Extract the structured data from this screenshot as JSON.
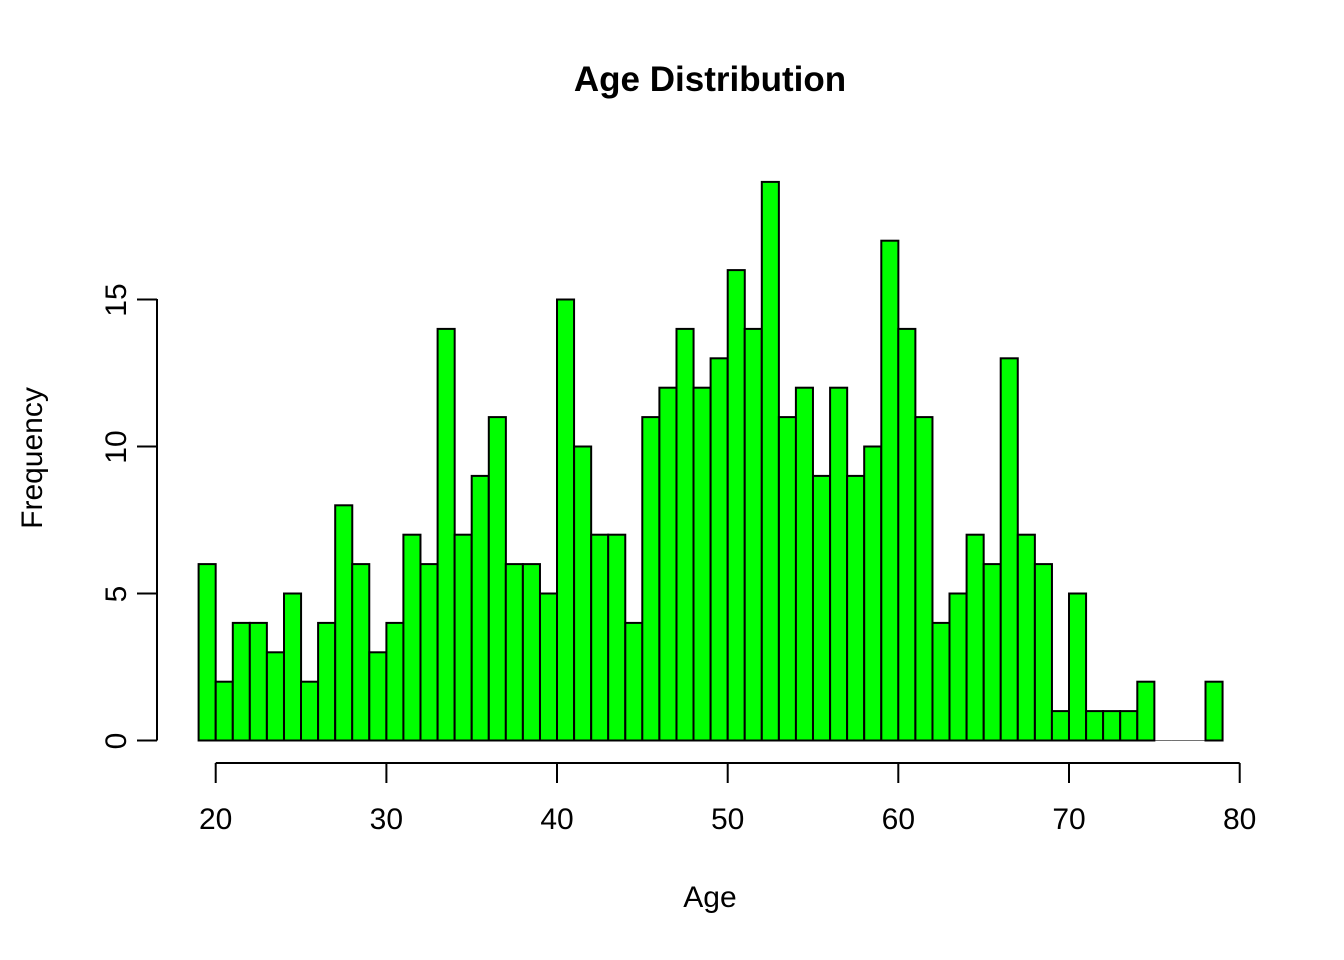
{
  "figure": {
    "title": "Age Distribution",
    "xlabel": "Age",
    "ylabel": "Frequency"
  },
  "chart_data": {
    "type": "bar",
    "subtype": "histogram",
    "title": "Age Distribution",
    "xlabel": "Age",
    "ylabel": "Frequency",
    "bin_width": 1,
    "bin_edges_start": 19,
    "bin_edges_end": 79,
    "categories": [
      19,
      20,
      21,
      22,
      23,
      24,
      25,
      26,
      27,
      28,
      29,
      30,
      31,
      32,
      33,
      34,
      35,
      36,
      37,
      38,
      39,
      40,
      41,
      42,
      43,
      44,
      45,
      46,
      47,
      48,
      49,
      50,
      51,
      52,
      53,
      54,
      55,
      56,
      57,
      58,
      59,
      60,
      61,
      62,
      63,
      64,
      65,
      66,
      67,
      68,
      69,
      70,
      71,
      72,
      73,
      74,
      75,
      76,
      77,
      78
    ],
    "values": [
      6,
      2,
      4,
      4,
      3,
      5,
      2,
      4,
      8,
      6,
      3,
      4,
      7,
      6,
      14,
      7,
      9,
      11,
      6,
      6,
      5,
      15,
      10,
      7,
      7,
      4,
      11,
      12,
      14,
      12,
      13,
      16,
      14,
      19,
      11,
      12,
      9,
      12,
      9,
      10,
      17,
      14,
      11,
      4,
      5,
      7,
      6,
      13,
      7,
      6,
      1,
      5,
      1,
      1,
      1,
      2,
      0,
      0,
      0,
      2
    ],
    "xticks": [
      20,
      30,
      40,
      50,
      60,
      70,
      80
    ],
    "yticks": [
      0,
      5,
      10,
      15
    ],
    "xlim": [
      19,
      79
    ],
    "ylim": [
      0,
      19
    ],
    "grid": false,
    "legend": "none",
    "bar_fill": "#00FF00",
    "bar_stroke": "#000000",
    "axis_color": "#000000",
    "background": "#FFFFFF"
  }
}
